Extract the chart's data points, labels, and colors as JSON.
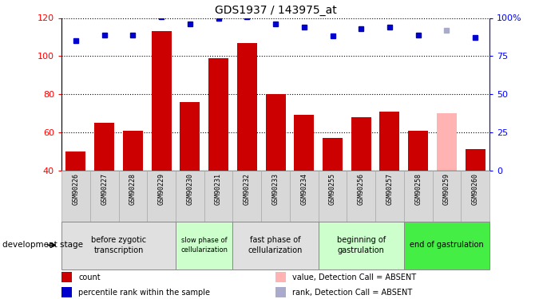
{
  "title": "GDS1937 / 143975_at",
  "samples": [
    "GSM90226",
    "GSM90227",
    "GSM90228",
    "GSM90229",
    "GSM90230",
    "GSM90231",
    "GSM90232",
    "GSM90233",
    "GSM90234",
    "GSM90255",
    "GSM90256",
    "GSM90257",
    "GSM90258",
    "GSM90259",
    "GSM90260"
  ],
  "bar_values": [
    50,
    65,
    61,
    113,
    76,
    99,
    107,
    80,
    69,
    57,
    68,
    71,
    61,
    70,
    51
  ],
  "bar_absent": [
    false,
    false,
    false,
    false,
    false,
    false,
    false,
    false,
    false,
    false,
    false,
    false,
    false,
    true,
    false
  ],
  "rank_values": [
    85,
    89,
    89,
    101,
    96,
    100,
    101,
    96,
    94,
    88,
    93,
    94,
    89,
    92,
    87
  ],
  "rank_absent": [
    false,
    false,
    false,
    false,
    false,
    false,
    false,
    false,
    false,
    false,
    false,
    false,
    false,
    true,
    false
  ],
  "ylim_left": [
    40,
    120
  ],
  "ylim_right": [
    0,
    100
  ],
  "yticks_left": [
    40,
    60,
    80,
    100,
    120
  ],
  "yticks_right": [
    0,
    25,
    50,
    75,
    100
  ],
  "ytick_labels_right": [
    "0",
    "25",
    "50",
    "75",
    "100%"
  ],
  "bar_color": "#cc0000",
  "bar_absent_color": "#ffb3b3",
  "rank_color": "#0000cc",
  "rank_absent_color": "#aaaacc",
  "stage_groups": [
    {
      "label": "before zygotic\ntranscription",
      "indices": [
        0,
        1,
        2,
        3
      ],
      "color": "#e0e0e0"
    },
    {
      "label": "slow phase of\ncellularization",
      "indices": [
        4,
        5
      ],
      "color": "#ccffcc"
    },
    {
      "label": "fast phase of\ncellularization",
      "indices": [
        6,
        7,
        8
      ],
      "color": "#e0e0e0"
    },
    {
      "label": "beginning of\ngastrulation",
      "indices": [
        9,
        10,
        11
      ],
      "color": "#ccffcc"
    },
    {
      "label": "end of gastrulation",
      "indices": [
        12,
        13,
        14
      ],
      "color": "#44ee44"
    }
  ],
  "legend_items": [
    {
      "label": "count",
      "color": "#cc0000"
    },
    {
      "label": "percentile rank within the sample",
      "color": "#0000cc"
    },
    {
      "label": "value, Detection Call = ABSENT",
      "color": "#ffb3b3"
    },
    {
      "label": "rank, Detection Call = ABSENT",
      "color": "#aaaacc"
    }
  ],
  "xlabel_stage": "development stage",
  "fig_width": 6.7,
  "fig_height": 3.75,
  "dpi": 100
}
